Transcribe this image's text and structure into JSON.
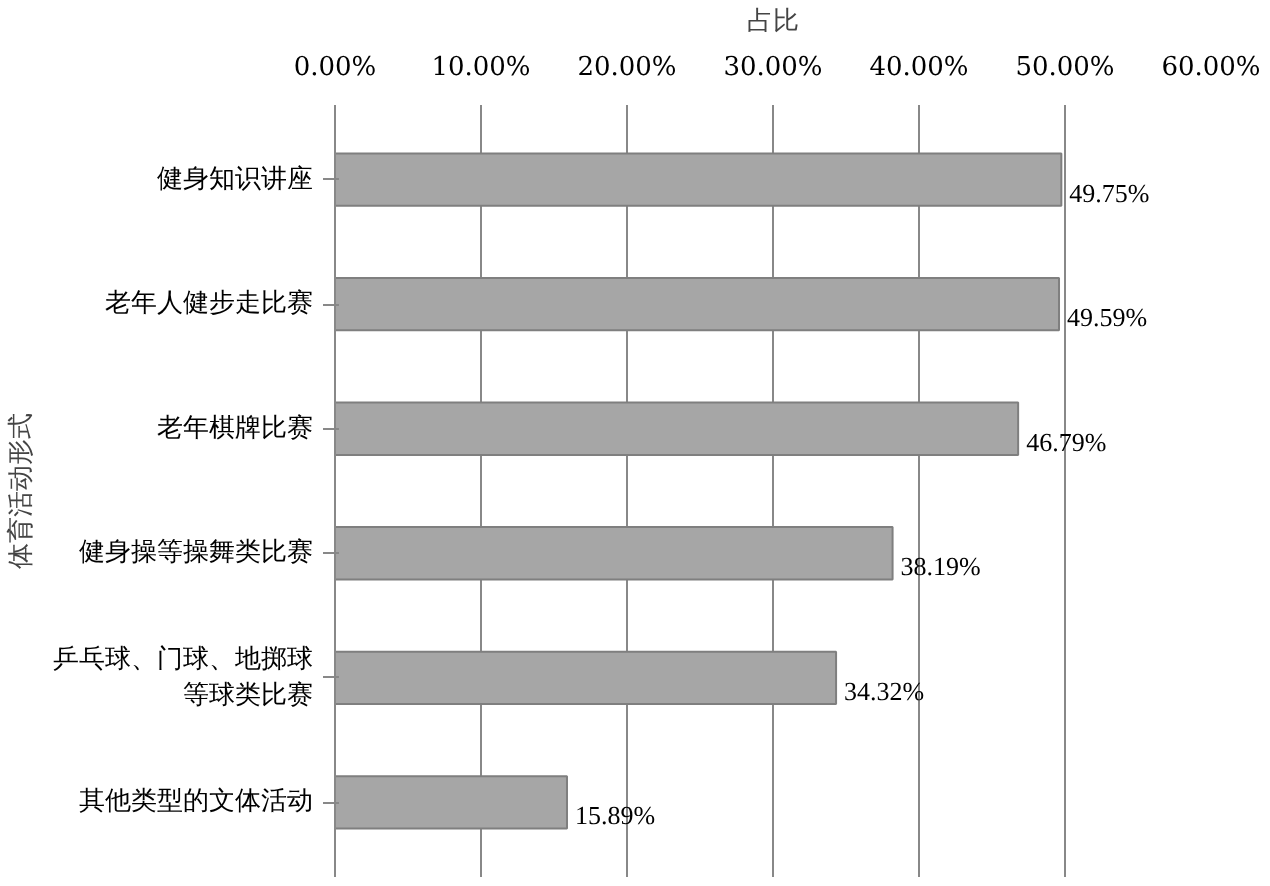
{
  "chart_data": {
    "type": "bar",
    "orientation": "horizontal",
    "xlabel": "占比",
    "ylabel": "体育活动形式",
    "categories": [
      "健身知识讲座",
      "老年人健步走比赛",
      "老年棋牌比赛",
      "健身操等操舞类比赛",
      "乒乓球、门球、地掷球等球类比赛",
      "其他类型的文体活动"
    ],
    "values": [
      49.75,
      49.59,
      46.79,
      38.19,
      34.32,
      15.89
    ],
    "value_labels": [
      "49.75%",
      "49.59%",
      "46.79%",
      "38.19%",
      "34.32%",
      "15.89%"
    ],
    "color": "#a6a6a6",
    "xlim": [
      0,
      60
    ],
    "xticks": [
      {
        "value": 0,
        "label": "0.00%"
      },
      {
        "value": 10,
        "label": "10.00%"
      },
      {
        "value": 20,
        "label": "20.00%"
      },
      {
        "value": 30,
        "label": "30.00%"
      },
      {
        "value": 40,
        "label": "40.00%"
      },
      {
        "value": 50,
        "label": "50.00%"
      },
      {
        "value": 60,
        "label": "60.00%"
      }
    ],
    "grid": "x"
  }
}
